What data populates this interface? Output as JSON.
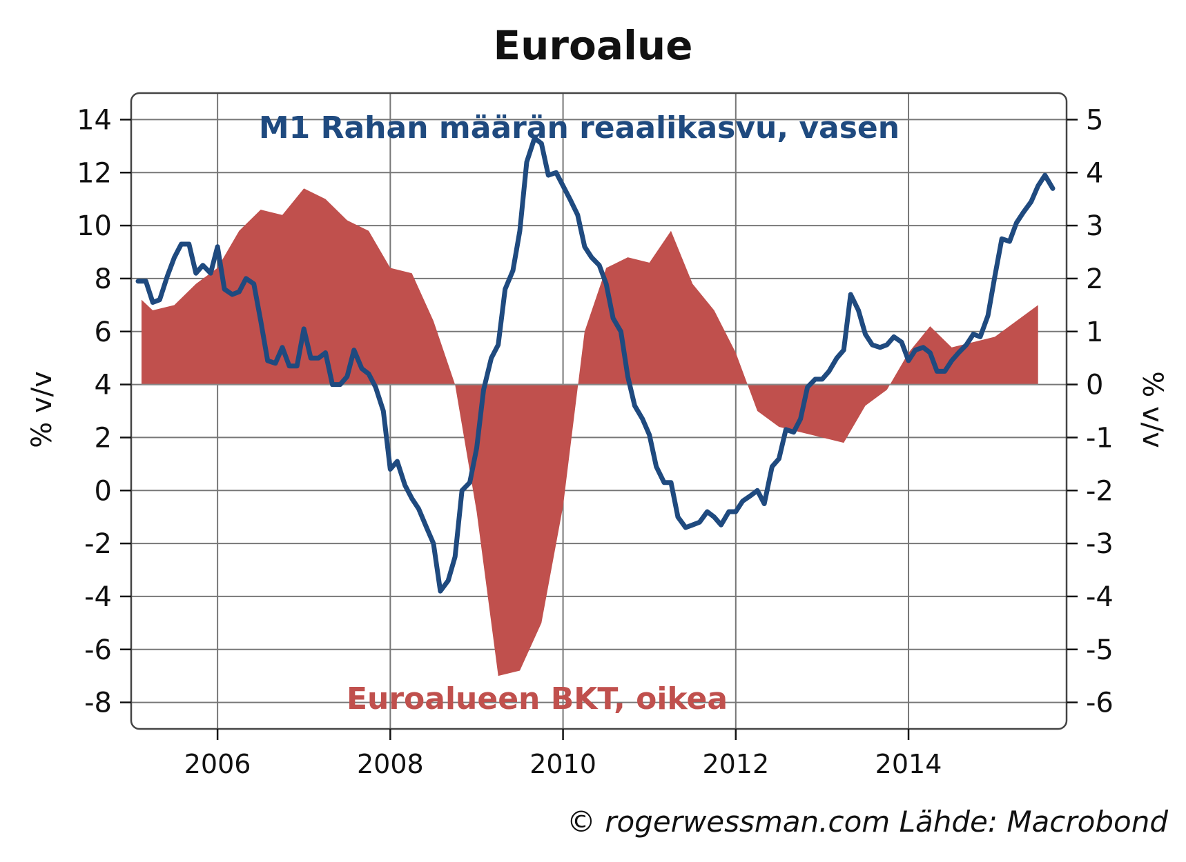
{
  "chart_data": {
    "type": "line",
    "title": "Euroalue",
    "xlabel": "",
    "ylabel": "% v/v",
    "y2label": "% v/v",
    "xlim": [
      2005.0,
      2015.83
    ],
    "ylim": [
      -9,
      15
    ],
    "y2lim": [
      -6.5,
      5.5
    ],
    "x_ticks": [
      2006,
      2008,
      2010,
      2012,
      2014
    ],
    "y_ticks": [
      14,
      12,
      10,
      8,
      6,
      4,
      2,
      0,
      -2,
      -4,
      -6,
      -8
    ],
    "y2_ticks": [
      5,
      4,
      3,
      2,
      1,
      0,
      -1,
      -2,
      -3,
      -4,
      -5,
      -6
    ],
    "grid": true,
    "colors": {
      "m1": "#1f4a7f",
      "gdp": "#c0504d",
      "grid": "#777777",
      "frame": "#444444"
    },
    "annotations": {
      "m1_label": "M1 Rahan määrän reaalikasvu, vasen",
      "gdp_label": "Euroalueen BKT, oikea"
    },
    "credit": "© rogerwessman.com Lähde: Macrobond",
    "series": [
      {
        "name": "M1 Rahan määrän reaalikasvu, vasen",
        "type": "line",
        "axis": "left",
        "points": [
          [
            2005.08,
            7.9
          ],
          [
            2005.17,
            7.9
          ],
          [
            2005.25,
            7.1
          ],
          [
            2005.33,
            7.2
          ],
          [
            2005.42,
            8.1
          ],
          [
            2005.5,
            8.8
          ],
          [
            2005.58,
            9.3
          ],
          [
            2005.67,
            9.3
          ],
          [
            2005.75,
            8.2
          ],
          [
            2005.83,
            8.5
          ],
          [
            2005.92,
            8.2
          ],
          [
            2006.0,
            9.2
          ],
          [
            2006.08,
            7.6
          ],
          [
            2006.17,
            7.4
          ],
          [
            2006.25,
            7.5
          ],
          [
            2006.33,
            8.0
          ],
          [
            2006.42,
            7.8
          ],
          [
            2006.5,
            6.4
          ],
          [
            2006.58,
            4.9
          ],
          [
            2006.67,
            4.8
          ],
          [
            2006.75,
            5.4
          ],
          [
            2006.83,
            4.7
          ],
          [
            2006.92,
            4.7
          ],
          [
            2007.0,
            6.1
          ],
          [
            2007.08,
            5.0
          ],
          [
            2007.17,
            5.0
          ],
          [
            2007.25,
            5.2
          ],
          [
            2007.33,
            4.0
          ],
          [
            2007.42,
            4.0
          ],
          [
            2007.5,
            4.3
          ],
          [
            2007.58,
            5.3
          ],
          [
            2007.67,
            4.6
          ],
          [
            2007.75,
            4.4
          ],
          [
            2007.83,
            3.9
          ],
          [
            2007.92,
            3.0
          ],
          [
            2008.0,
            0.8
          ],
          [
            2008.08,
            1.1
          ],
          [
            2008.17,
            0.2
          ],
          [
            2008.25,
            -0.3
          ],
          [
            2008.33,
            -0.7
          ],
          [
            2008.42,
            -1.4
          ],
          [
            2008.5,
            -2.0
          ],
          [
            2008.58,
            -3.8
          ],
          [
            2008.67,
            -3.4
          ],
          [
            2008.75,
            -2.5
          ],
          [
            2008.83,
            0.0
          ],
          [
            2008.92,
            0.3
          ],
          [
            2009.0,
            1.6
          ],
          [
            2009.08,
            3.8
          ],
          [
            2009.17,
            5.0
          ],
          [
            2009.25,
            5.5
          ],
          [
            2009.33,
            7.6
          ],
          [
            2009.42,
            8.3
          ],
          [
            2009.5,
            9.8
          ],
          [
            2009.58,
            12.4
          ],
          [
            2009.67,
            13.3
          ],
          [
            2009.75,
            13.1
          ],
          [
            2009.83,
            11.9
          ],
          [
            2009.92,
            12.0
          ],
          [
            2010.0,
            11.5
          ],
          [
            2010.08,
            11.0
          ],
          [
            2010.17,
            10.4
          ],
          [
            2010.25,
            9.2
          ],
          [
            2010.33,
            8.8
          ],
          [
            2010.42,
            8.5
          ],
          [
            2010.5,
            7.8
          ],
          [
            2010.58,
            6.5
          ],
          [
            2010.67,
            6.0
          ],
          [
            2010.75,
            4.3
          ],
          [
            2010.83,
            3.2
          ],
          [
            2010.92,
            2.7
          ],
          [
            2011.0,
            2.1
          ],
          [
            2011.08,
            0.9
          ],
          [
            2011.17,
            0.3
          ],
          [
            2011.25,
            0.3
          ],
          [
            2011.33,
            -1.0
          ],
          [
            2011.42,
            -1.4
          ],
          [
            2011.5,
            -1.3
          ],
          [
            2011.58,
            -1.2
          ],
          [
            2011.67,
            -0.8
          ],
          [
            2011.75,
            -1.0
          ],
          [
            2011.83,
            -1.3
          ],
          [
            2011.92,
            -0.8
          ],
          [
            2012.0,
            -0.8
          ],
          [
            2012.08,
            -0.4
          ],
          [
            2012.17,
            -0.2
          ],
          [
            2012.25,
            0.0
          ],
          [
            2012.33,
            -0.5
          ],
          [
            2012.42,
            0.9
          ],
          [
            2012.5,
            1.2
          ],
          [
            2012.58,
            2.3
          ],
          [
            2012.67,
            2.2
          ],
          [
            2012.75,
            2.7
          ],
          [
            2012.83,
            3.9
          ],
          [
            2012.92,
            4.2
          ],
          [
            2013.0,
            4.2
          ],
          [
            2013.08,
            4.5
          ],
          [
            2013.17,
            5.0
          ],
          [
            2013.25,
            5.3
          ],
          [
            2013.33,
            7.4
          ],
          [
            2013.42,
            6.8
          ],
          [
            2013.5,
            5.9
          ],
          [
            2013.58,
            5.5
          ],
          [
            2013.67,
            5.4
          ],
          [
            2013.75,
            5.5
          ],
          [
            2013.83,
            5.8
          ],
          [
            2013.92,
            5.6
          ],
          [
            2014.0,
            4.9
          ],
          [
            2014.08,
            5.3
          ],
          [
            2014.17,
            5.4
          ],
          [
            2014.25,
            5.2
          ],
          [
            2014.33,
            4.5
          ],
          [
            2014.42,
            4.5
          ],
          [
            2014.5,
            4.9
          ],
          [
            2014.58,
            5.2
          ],
          [
            2014.67,
            5.5
          ],
          [
            2014.75,
            5.9
          ],
          [
            2014.83,
            5.8
          ],
          [
            2014.92,
            6.6
          ],
          [
            2015.0,
            8.1
          ],
          [
            2015.08,
            9.5
          ],
          [
            2015.17,
            9.4
          ],
          [
            2015.25,
            10.1
          ],
          [
            2015.33,
            10.5
          ],
          [
            2015.42,
            10.9
          ],
          [
            2015.5,
            11.5
          ],
          [
            2015.58,
            11.9
          ],
          [
            2015.67,
            11.4
          ]
        ]
      },
      {
        "name": "Euroalueen BKT, oikea",
        "type": "area",
        "axis": "right",
        "points": [
          [
            2005.12,
            1.6
          ],
          [
            2005.25,
            1.4
          ],
          [
            2005.5,
            1.5
          ],
          [
            2005.75,
            1.9
          ],
          [
            2006.0,
            2.2
          ],
          [
            2006.25,
            2.9
          ],
          [
            2006.5,
            3.3
          ],
          [
            2006.75,
            3.2
          ],
          [
            2007.0,
            3.7
          ],
          [
            2007.25,
            3.5
          ],
          [
            2007.5,
            3.1
          ],
          [
            2007.75,
            2.9
          ],
          [
            2008.0,
            2.2
          ],
          [
            2008.25,
            2.1
          ],
          [
            2008.5,
            1.2
          ],
          [
            2008.75,
            0.0
          ],
          [
            2009.0,
            -2.4
          ],
          [
            2009.25,
            -5.5
          ],
          [
            2009.5,
            -5.4
          ],
          [
            2009.75,
            -4.5
          ],
          [
            2010.0,
            -2.3
          ],
          [
            2010.25,
            1.0
          ],
          [
            2010.5,
            2.2
          ],
          [
            2010.75,
            2.4
          ],
          [
            2011.0,
            2.3
          ],
          [
            2011.25,
            2.9
          ],
          [
            2011.5,
            1.9
          ],
          [
            2011.75,
            1.4
          ],
          [
            2012.0,
            0.6
          ],
          [
            2012.25,
            -0.5
          ],
          [
            2012.5,
            -0.8
          ],
          [
            2012.75,
            -0.9
          ],
          [
            2013.0,
            -1.0
          ],
          [
            2013.25,
            -1.1
          ],
          [
            2013.5,
            -0.4
          ],
          [
            2013.75,
            -0.1
          ],
          [
            2014.0,
            0.6
          ],
          [
            2014.25,
            1.1
          ],
          [
            2014.5,
            0.7
          ],
          [
            2014.75,
            0.8
          ],
          [
            2015.0,
            0.9
          ],
          [
            2015.25,
            1.2
          ],
          [
            2015.5,
            1.5
          ]
        ]
      }
    ]
  }
}
